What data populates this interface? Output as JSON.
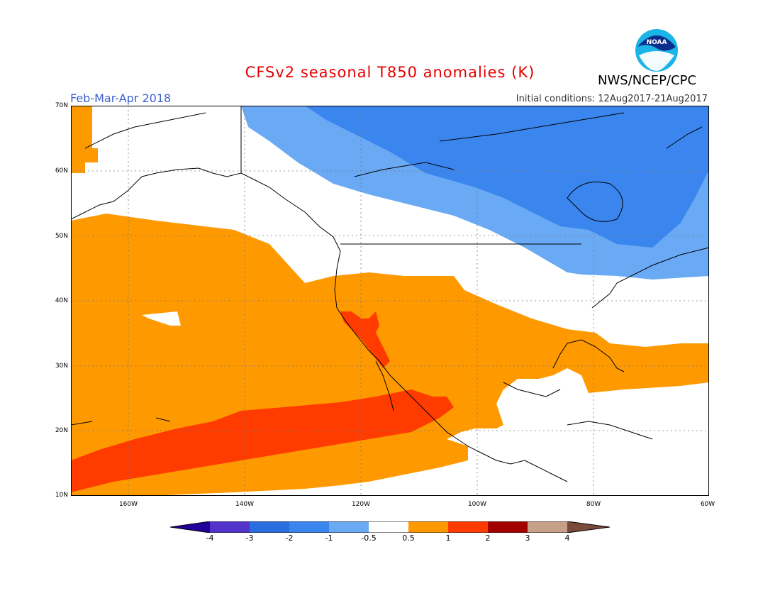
{
  "header": {
    "title": "CFSv2 seasonal T850 anomalies (K)",
    "period": "Feb-Mar-Apr 2018",
    "initial_conditions": "Initial conditions: 12Aug2017-21Aug2017",
    "agency": "NWS/NCEP/CPC",
    "logo_text": "NOAA"
  },
  "map": {
    "lat_labels": [
      "70N",
      "60N",
      "50N",
      "40N",
      "30N",
      "20N",
      "10N"
    ],
    "lon_labels": [
      "160W",
      "140W",
      "120W",
      "100W",
      "80W",
      "60W"
    ],
    "colors": {
      "neg3": "#2a6fe0",
      "neg2": "#3b85ee",
      "neg1": "#6aaaf4",
      "pos05": "#ff9900",
      "pos1": "#ff3b00",
      "grid": "#666666",
      "coast": "#000000"
    }
  },
  "colorbar": {
    "labels": [
      "-4",
      "-3",
      "-2",
      "-1",
      "-0.5",
      "0.5",
      "1",
      "2",
      "3",
      "4"
    ],
    "colors": [
      "#22009a",
      "#5233c9",
      "#2a6fe0",
      "#3b85ee",
      "#6aaaf4",
      "#ffffff",
      "#ff9900",
      "#ff3b00",
      "#a30000",
      "#c7a08a",
      "#7a4a3a"
    ]
  }
}
